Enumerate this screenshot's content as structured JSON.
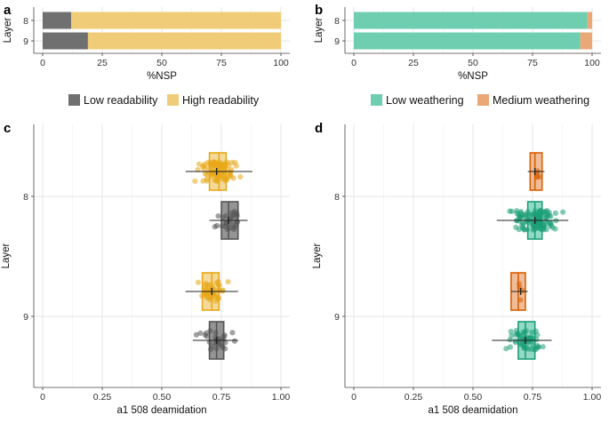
{
  "colors": {
    "low_readability": "#707070",
    "high_readability": "#f0cc78",
    "low_weathering": "#6fcdb0",
    "medium_weathering": "#eaa777",
    "jitter_high_readability": "#e8a817",
    "jitter_low_readability": "#555555",
    "jitter_low_weathering": "#1b9e77",
    "jitter_medium_weathering": "#d95f02",
    "grid": "#e6e6e6",
    "plot_bg": "#ffffff"
  },
  "chart_data": [
    {
      "id": "a",
      "panel_label": "a",
      "type": "bar",
      "orientation": "horizontal",
      "stacked": true,
      "xlabel": "%NSP",
      "ylabel": "Layer",
      "xlim": [
        0,
        100
      ],
      "xticks": [
        "0",
        "25",
        "50",
        "75",
        "100"
      ],
      "categories": [
        "8",
        "9"
      ],
      "series": [
        {
          "name": "Low readability",
          "color_key": "low_readability",
          "values": [
            12,
            19
          ]
        },
        {
          "name": "High readability",
          "color_key": "high_readability",
          "values": [
            88,
            81
          ]
        }
      ],
      "legend": [
        "Low readability",
        "High readability"
      ]
    },
    {
      "id": "b",
      "panel_label": "b",
      "type": "bar",
      "orientation": "horizontal",
      "stacked": true,
      "xlabel": "%NSP",
      "ylabel": "Layer",
      "xlim": [
        0,
        100
      ],
      "xticks": [
        "0",
        "25",
        "50",
        "75",
        "100"
      ],
      "categories": [
        "8",
        "9"
      ],
      "series": [
        {
          "name": "Low weathering",
          "color_key": "low_weathering",
          "values": [
            98,
            95
          ]
        },
        {
          "name": "Medium weathering",
          "color_key": "medium_weathering",
          "values": [
            2,
            5
          ]
        }
      ],
      "legend": [
        "Low weathering",
        "Medium weathering"
      ]
    },
    {
      "id": "c",
      "panel_label": "c",
      "type": "box-jitter",
      "orientation": "horizontal",
      "xlabel": "a1 508 deamidation",
      "ylabel": "Layer",
      "xlim": [
        0,
        1.0
      ],
      "xticks": [
        "0",
        "0.25",
        "0.50",
        "0.75",
        "1.00"
      ],
      "categories": [
        "8",
        "9"
      ],
      "groups": [
        {
          "layer": "8",
          "series": "High readability",
          "fill_key": "high_readability",
          "point_key": "jitter_high_readability",
          "q1": 0.7,
          "median": 0.74,
          "q3": 0.77,
          "whisker_low": 0.6,
          "whisker_high": 0.88,
          "mean": 0.73,
          "n": 90,
          "spread": 0.055
        },
        {
          "layer": "8",
          "series": "Low readability",
          "fill_key": "low_readability",
          "point_key": "jitter_low_readability",
          "q1": 0.75,
          "median": 0.78,
          "q3": 0.82,
          "whisker_low": 0.7,
          "whisker_high": 0.86,
          "mean": 0.78,
          "n": 25,
          "spread": 0.035
        },
        {
          "layer": "9",
          "series": "High readability",
          "fill_key": "high_readability",
          "point_key": "jitter_high_readability",
          "q1": 0.67,
          "median": 0.71,
          "q3": 0.74,
          "whisker_low": 0.6,
          "whisker_high": 0.82,
          "mean": 0.71,
          "n": 45,
          "spread": 0.045
        },
        {
          "layer": "9",
          "series": "Low readability",
          "fill_key": "low_readability",
          "point_key": "jitter_low_readability",
          "q1": 0.7,
          "median": 0.73,
          "q3": 0.76,
          "whisker_low": 0.63,
          "whisker_high": 0.82,
          "mean": 0.73,
          "n": 28,
          "spread": 0.04
        }
      ]
    },
    {
      "id": "d",
      "panel_label": "d",
      "type": "box-jitter",
      "orientation": "horizontal",
      "xlabel": "a1 508 deamidation",
      "ylabel": "Layer",
      "xlim": [
        0,
        1.0
      ],
      "xticks": [
        "0",
        "0.25",
        "0.50",
        "0.75",
        "1.00"
      ],
      "categories": [
        "8",
        "9"
      ],
      "groups": [
        {
          "layer": "8",
          "series": "Medium weathering",
          "fill_key": "medium_weathering",
          "point_key": "jitter_medium_weathering",
          "q1": 0.74,
          "median": 0.76,
          "q3": 0.79,
          "whisker_low": 0.73,
          "whisker_high": 0.8,
          "mean": 0.76,
          "n": 5,
          "spread": 0.02
        },
        {
          "layer": "8",
          "series": "Low weathering",
          "fill_key": "low_weathering",
          "point_key": "jitter_low_weathering",
          "q1": 0.73,
          "median": 0.76,
          "q3": 0.79,
          "whisker_low": 0.6,
          "whisker_high": 0.9,
          "mean": 0.76,
          "n": 110,
          "spread": 0.06
        },
        {
          "layer": "9",
          "series": "Medium weathering",
          "fill_key": "medium_weathering",
          "point_key": "jitter_medium_weathering",
          "q1": 0.66,
          "median": 0.69,
          "q3": 0.72,
          "whisker_low": 0.66,
          "whisker_high": 0.73,
          "mean": 0.7,
          "n": 4,
          "spread": 0.02
        },
        {
          "layer": "9",
          "series": "Low weathering",
          "fill_key": "low_weathering",
          "point_key": "jitter_low_weathering",
          "q1": 0.69,
          "median": 0.72,
          "q3": 0.76,
          "whisker_low": 0.58,
          "whisker_high": 0.83,
          "mean": 0.72,
          "n": 55,
          "spread": 0.045
        }
      ]
    }
  ]
}
